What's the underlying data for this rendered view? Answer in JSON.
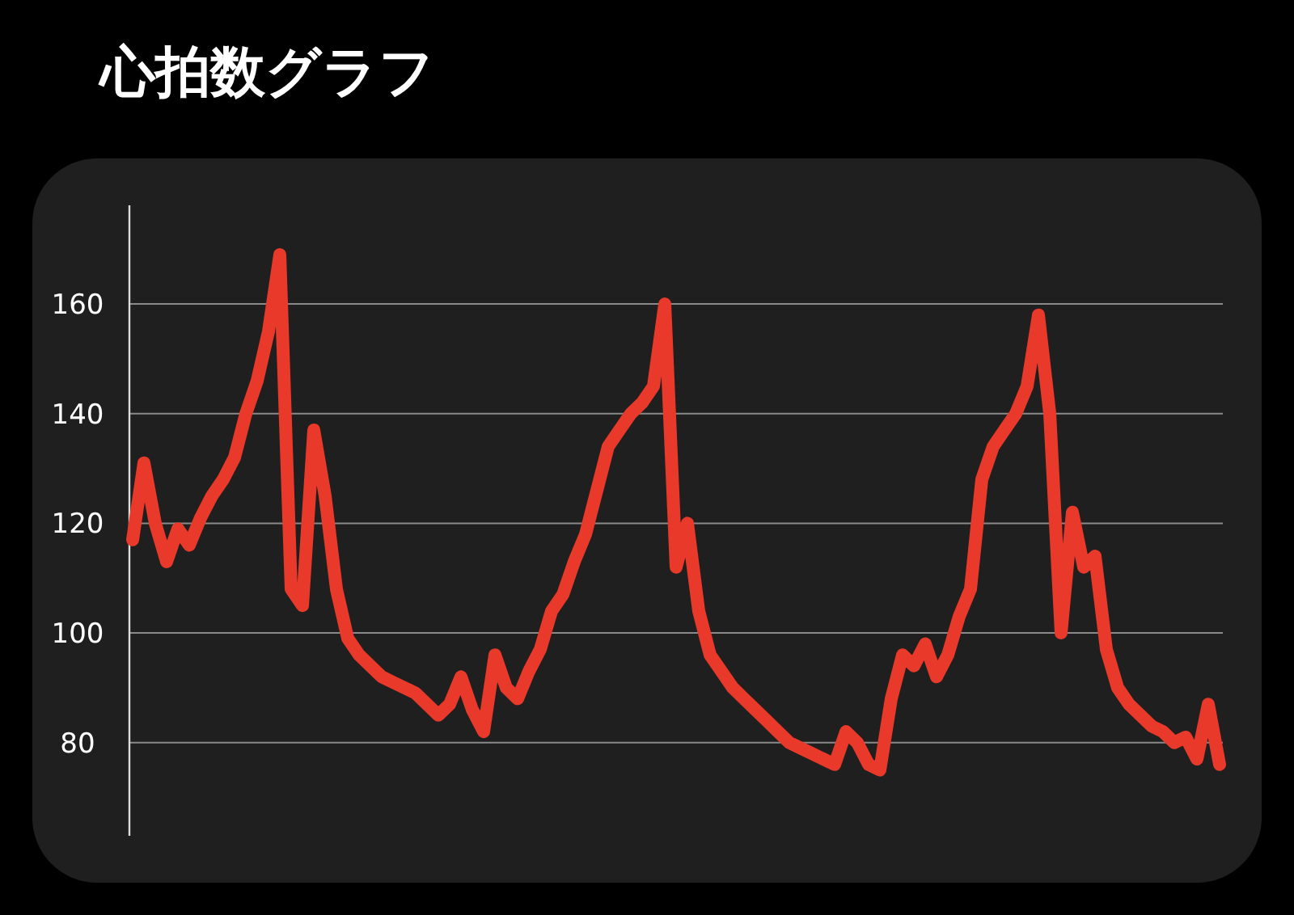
{
  "chart_data": {
    "type": "line",
    "title": "心拍数グラフ",
    "categories": [
      null,
      null,
      null,
      null,
      null,
      null,
      null,
      null,
      null,
      null,
      null,
      null,
      null,
      null,
      null,
      null,
      null,
      null,
      null,
      null,
      null,
      null,
      null,
      null,
      null,
      null,
      null,
      null,
      null,
      null,
      null,
      null,
      null,
      null,
      null,
      null,
      null,
      null,
      null,
      null,
      null,
      null,
      null,
      null,
      null,
      null,
      null,
      null,
      null,
      null,
      null,
      null,
      null,
      null,
      null,
      null,
      null,
      null,
      null,
      null,
      null,
      null,
      null,
      null,
      null,
      null,
      null,
      null,
      null,
      null,
      null,
      null,
      null,
      null,
      null,
      null,
      null,
      null,
      null,
      null,
      null,
      null,
      null,
      null,
      null,
      null,
      null,
      null,
      null,
      null,
      null,
      null,
      null,
      null,
      null,
      null,
      null
    ],
    "series": [
      {
        "color": "#e8392a",
        "values": [
          117,
          131,
          120,
          113,
          119,
          116,
          121,
          125,
          128,
          132,
          140,
          146,
          155,
          169,
          108,
          105,
          137,
          125,
          108,
          99,
          96,
          94,
          92,
          91,
          90,
          89,
          87,
          85,
          87,
          92,
          86,
          82,
          96,
          90,
          88,
          93,
          97,
          104,
          107,
          113,
          118,
          126,
          134,
          137,
          140,
          142,
          145,
          160,
          112,
          120,
          104,
          96,
          93,
          90,
          88,
          86,
          84,
          82,
          80,
          79,
          78,
          77,
          76,
          82,
          80,
          76,
          75,
          88,
          96,
          94,
          98,
          92,
          96,
          103,
          108,
          128,
          134,
          137,
          140,
          145,
          158,
          140,
          100,
          122,
          112,
          114,
          97,
          90,
          87,
          85,
          83,
          82,
          80,
          81,
          77,
          87,
          76
        ]
      }
    ],
    "ylim": [
      63,
      178
    ],
    "yticks": [
      80,
      100,
      120,
      140,
      160
    ],
    "grid": "y",
    "marker": "none",
    "line_style": "solid"
  }
}
